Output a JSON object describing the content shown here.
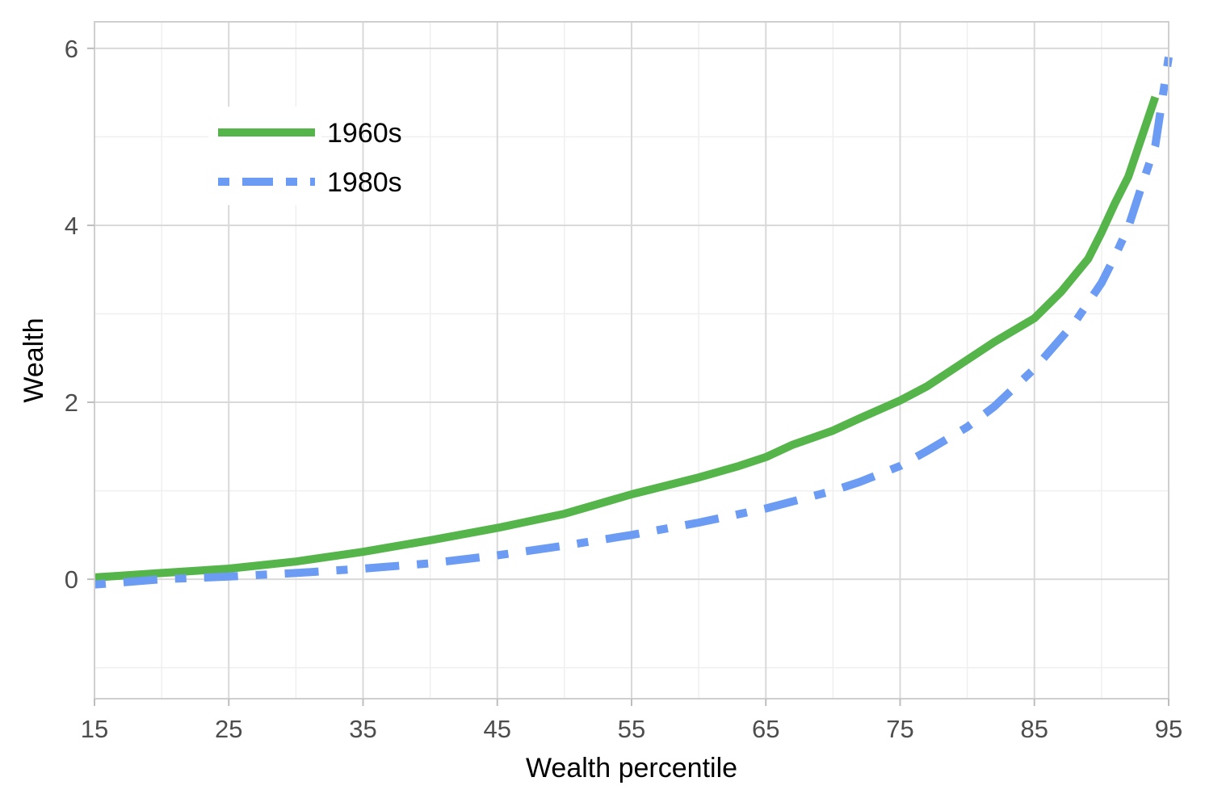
{
  "chart_data": {
    "type": "line",
    "title": "",
    "xlabel": "Wealth percentile",
    "ylabel": "Wealth",
    "xlim": [
      15,
      95
    ],
    "ylim": [
      -1.35,
      6.3
    ],
    "x_ticks": [
      15,
      25,
      35,
      45,
      55,
      65,
      75,
      85,
      95
    ],
    "x_tick_labels": [
      "15",
      "25",
      "35",
      "45",
      "55",
      "65",
      "75",
      "85",
      "95"
    ],
    "x_minor_ticks": [
      20,
      30,
      40,
      50,
      60,
      70,
      80,
      90
    ],
    "y_ticks": [
      0,
      2,
      4,
      6
    ],
    "y_tick_labels": [
      "0",
      "2",
      "4",
      "6"
    ],
    "y_minor_ticks": [
      -1,
      1,
      3,
      5
    ],
    "grid": true,
    "legend_position": "top-left",
    "series": [
      {
        "name": "1960s",
        "color": "#55b54a",
        "style": "solid",
        "x": [
          15,
          20,
          25,
          30,
          35,
          40,
          45,
          50,
          55,
          60,
          63,
          65,
          67,
          70,
          72,
          75,
          77,
          80,
          82,
          85,
          87,
          89,
          90,
          91,
          92,
          93,
          94
        ],
        "y": [
          0.02,
          0.07,
          0.12,
          0.2,
          0.31,
          0.44,
          0.58,
          0.74,
          0.96,
          1.15,
          1.28,
          1.38,
          1.52,
          1.68,
          1.82,
          2.02,
          2.18,
          2.48,
          2.68,
          2.95,
          3.25,
          3.62,
          3.92,
          4.25,
          4.55,
          5.0,
          5.45
        ]
      },
      {
        "name": "1980s",
        "color": "#6b9bf2",
        "style": "dashdot",
        "x": [
          15,
          20,
          25,
          30,
          35,
          40,
          45,
          50,
          55,
          60,
          65,
          70,
          72,
          75,
          77,
          80,
          82,
          85,
          88,
          90,
          91,
          92,
          93,
          94,
          95
        ],
        "y": [
          -0.06,
          0.0,
          0.03,
          0.07,
          0.12,
          0.18,
          0.27,
          0.38,
          0.5,
          0.64,
          0.8,
          1.0,
          1.1,
          1.28,
          1.45,
          1.72,
          1.95,
          2.38,
          2.9,
          3.35,
          3.65,
          3.98,
          4.45,
          4.9,
          5.9
        ]
      }
    ]
  }
}
